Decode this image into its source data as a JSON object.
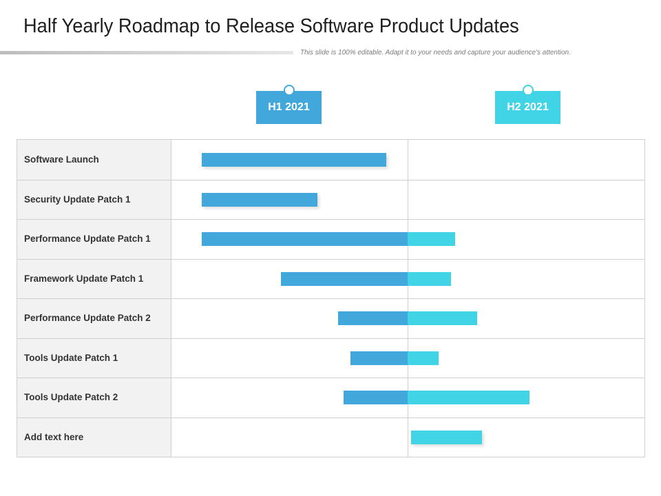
{
  "slide": {
    "title": "Half Yearly Roadmap to Release Software Product Updates",
    "subtitle": "This slide is 100% editable. Adapt it to your needs and capture your audience's attention."
  },
  "periods": [
    {
      "label": "H1 2021",
      "color": "#42a8dc"
    },
    {
      "label": "H2 2021",
      "color": "#41d3e6"
    }
  ],
  "colors": {
    "h1_bar": "#42a8dc",
    "h2_bar": "#41d3e6",
    "grid": "#cfcfcf",
    "label_bg": "#f2f2f2"
  },
  "rows": [
    {
      "label": "Software Launch",
      "h1": [
        0.13,
        0.91
      ],
      "h2": null
    },
    {
      "label": "Security Update Patch 1",
      "h1": [
        0.13,
        0.62
      ],
      "h2": null
    },
    {
      "label": "Performance Update Patch 1",
      "h1": [
        0.13,
        1.0
      ],
      "h2": [
        0.0,
        0.2
      ]
    },
    {
      "label": "Framework Update Patch 1",
      "h1": [
        0.465,
        1.0
      ],
      "h2": [
        0.0,
        0.185
      ]
    },
    {
      "label": "Performance Update Patch 2",
      "h1": [
        0.705,
        1.0
      ],
      "h2": [
        0.0,
        0.295
      ]
    },
    {
      "label": "Tools Update Patch 1",
      "h1": [
        0.76,
        1.0
      ],
      "h2": [
        0.0,
        0.13
      ]
    },
    {
      "label": "Tools Update Patch 2",
      "h1": [
        0.73,
        1.0
      ],
      "h2": [
        0.0,
        0.515
      ]
    },
    {
      "label": "Add text here",
      "h1": null,
      "h2": [
        0.015,
        0.315
      ]
    }
  ]
}
